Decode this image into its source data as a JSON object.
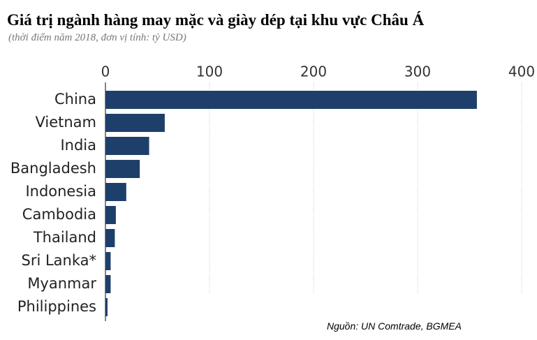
{
  "chart_data": {
    "type": "bar",
    "orientation": "horizontal",
    "title": "Giá trị ngành hàng may mặc và giày dép tại khu vực Châu Á",
    "subtitle": "(thời điểm năm 2018, đơn vị tính: tỷ USD)",
    "source": "Nguồn: UN Comtrade, BGMEA",
    "categories": [
      "China",
      "Vietnam",
      "India",
      "Bangladesh",
      "Indonesia",
      "Cambodia",
      "Thailand",
      "Sri Lanka*",
      "Myanmar",
      "Philippines"
    ],
    "values": [
      357,
      57,
      42,
      33,
      20,
      10,
      9,
      5,
      5,
      2
    ],
    "color": "#1f3f6b",
    "xlim": [
      0,
      400
    ],
    "xticks": [
      0,
      100,
      200,
      300,
      400
    ],
    "grid": true
  }
}
